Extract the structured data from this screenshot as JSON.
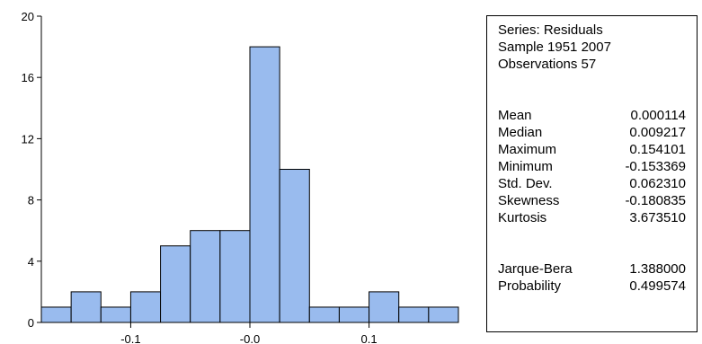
{
  "chart_data": {
    "type": "bar",
    "subtype": "histogram",
    "bin_width": 0.025,
    "bins": [
      {
        "x0": -0.175,
        "x1": -0.15,
        "count": 1
      },
      {
        "x0": -0.15,
        "x1": -0.125,
        "count": 2
      },
      {
        "x0": -0.125,
        "x1": -0.1,
        "count": 1
      },
      {
        "x0": -0.1,
        "x1": -0.075,
        "count": 2
      },
      {
        "x0": -0.075,
        "x1": -0.05,
        "count": 5
      },
      {
        "x0": -0.05,
        "x1": -0.025,
        "count": 6
      },
      {
        "x0": -0.025,
        "x1": 0.0,
        "count": 6
      },
      {
        "x0": 0.0,
        "x1": 0.025,
        "count": 18
      },
      {
        "x0": 0.025,
        "x1": 0.05,
        "count": 10
      },
      {
        "x0": 0.05,
        "x1": 0.075,
        "count": 1
      },
      {
        "x0": 0.075,
        "x1": 0.1,
        "count": 1
      },
      {
        "x0": 0.1,
        "x1": 0.125,
        "count": 2
      },
      {
        "x0": 0.125,
        "x1": 0.15,
        "count": 1
      },
      {
        "x0": 0.15,
        "x1": 0.175,
        "count": 1
      }
    ],
    "xlim": [
      -0.175,
      0.175
    ],
    "ylim": [
      0,
      20
    ],
    "x_ticks": [
      {
        "value": -0.1,
        "label": "-0.1"
      },
      {
        "value": 0.0,
        "label": "-0.0"
      },
      {
        "value": 0.1,
        "label": "0.1"
      }
    ],
    "y_ticks": [
      {
        "value": 0,
        "label": "0"
      },
      {
        "value": 4,
        "label": "4"
      },
      {
        "value": 8,
        "label": "8"
      },
      {
        "value": 12,
        "label": "12"
      },
      {
        "value": 16,
        "label": "16"
      },
      {
        "value": 20,
        "label": "20"
      }
    ],
    "grid": false,
    "colors": {
      "bar_fill": "#99bbee",
      "bar_stroke": "#000000"
    }
  },
  "stats": {
    "series_line": "Series: Residuals",
    "sample_line": "Sample 1951 2007",
    "observations_line": "Observations 57",
    "rows": [
      {
        "label": "Mean",
        "value": "0.000114"
      },
      {
        "label": "Median",
        "value": "0.009217"
      },
      {
        "label": "Maximum",
        "value": "0.154101"
      },
      {
        "label": "Minimum",
        "value": "-0.153369"
      },
      {
        "label": "Std. Dev.",
        "value": "0.062310"
      },
      {
        "label": "Skewness",
        "value": "-0.180835"
      },
      {
        "label": "Kurtosis",
        "value": "3.673510"
      }
    ],
    "test_rows": [
      {
        "label": "Jarque-Bera",
        "value": "1.388000"
      },
      {
        "label": "Probability",
        "value": "0.499574"
      }
    ]
  }
}
